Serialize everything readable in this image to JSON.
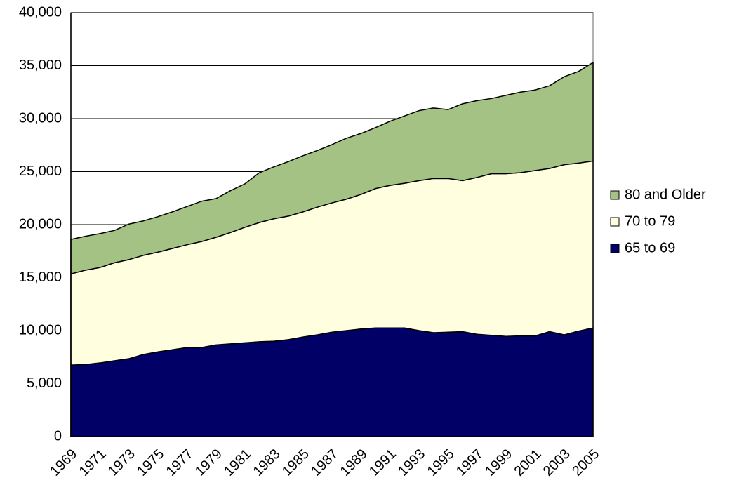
{
  "chart_data": {
    "type": "stacked-area",
    "categories": [
      "1969",
      null,
      "1971",
      null,
      "1973",
      null,
      "1975",
      null,
      "1977",
      null,
      "1979",
      null,
      "1981",
      null,
      "1983",
      null,
      "1985",
      null,
      "1987",
      null,
      "1989",
      null,
      "1991",
      null,
      "1993",
      null,
      "1995",
      null,
      "1997",
      null,
      "1999",
      null,
      "2001",
      null,
      "2003",
      null,
      "2005"
    ],
    "series": [
      {
        "name": "65 to 69",
        "color": "#000066",
        "values": [
          6750,
          6800,
          6950,
          7150,
          7350,
          7750,
          8000,
          8200,
          8400,
          8400,
          8650,
          8750,
          8850,
          8950,
          9000,
          9150,
          9400,
          9600,
          9850,
          10000,
          10150,
          10250,
          10250,
          10250,
          10000,
          9800,
          9850,
          9900,
          9650,
          9550,
          9450,
          9500,
          9500,
          9900,
          9600,
          9950,
          10250
        ]
      },
      {
        "name": "70 to 79",
        "color": "#ffffe0",
        "values": [
          8600,
          8900,
          9000,
          9250,
          9350,
          9350,
          9400,
          9550,
          9700,
          10000,
          10150,
          10500,
          10900,
          11250,
          11550,
          11650,
          11800,
          12050,
          12200,
          12400,
          12700,
          13150,
          13450,
          13650,
          14150,
          14550,
          14500,
          14250,
          14800,
          15250,
          15350,
          15400,
          15600,
          15400,
          16050,
          15850,
          15750
        ]
      },
      {
        "name": "80 and Older",
        "color": "#a3c283",
        "values": [
          3250,
          3200,
          3200,
          3050,
          3350,
          3250,
          3350,
          3450,
          3600,
          3800,
          3650,
          3950,
          4100,
          4700,
          4900,
          5150,
          5300,
          5350,
          5500,
          5750,
          5750,
          5750,
          6050,
          6350,
          6600,
          6650,
          6500,
          7250,
          7250,
          7100,
          7400,
          7600,
          7600,
          7800,
          8300,
          8650,
          9300
        ]
      }
    ],
    "ylim": [
      0,
      40000
    ],
    "yticks": [
      0,
      {
        "value": 5000,
        "label": "5,000"
      },
      {
        "value": 10000,
        "label": "10,000"
      },
      {
        "value": 15000,
        "label": "15,000"
      },
      {
        "value": 20000,
        "label": "20,000"
      },
      {
        "value": 25000,
        "label": "25,000"
      },
      {
        "value": 30000,
        "label": "30,000"
      },
      {
        "value": 35000,
        "label": "35,000"
      },
      {
        "value": 40000,
        "label": "40,000"
      }
    ],
    "grid": true,
    "legend": "right"
  }
}
